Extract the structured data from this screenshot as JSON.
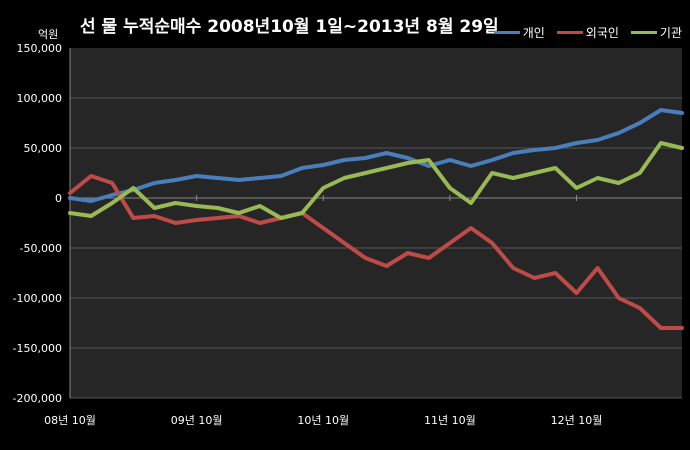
{
  "chart_data": {
    "type": "line",
    "title": "선 물 누적순매수 2008년10월 1일~2013년 8월 29일",
    "ylabel": "억원",
    "ylim": [
      -200000,
      150000
    ],
    "yticks": [
      "150,000",
      "100,000",
      "50,000",
      "0",
      "-50,000",
      "-100,000",
      "-150,000",
      "-200,000"
    ],
    "ytick_values": [
      150000,
      100000,
      50000,
      0,
      -50000,
      -100000,
      -150000,
      -200000
    ],
    "xtick_labels": [
      "08년 10월",
      "09년 10월",
      "10년 10월",
      "11년 10월",
      "12년 10월"
    ],
    "xlim": [
      "2008-10",
      "2013-08"
    ],
    "x": [
      "2008-10",
      "2008-12",
      "2009-02",
      "2009-04",
      "2009-06",
      "2009-08",
      "2009-10",
      "2009-12",
      "2010-02",
      "2010-04",
      "2010-06",
      "2010-08",
      "2010-10",
      "2010-12",
      "2011-02",
      "2011-04",
      "2011-06",
      "2011-08",
      "2011-10",
      "2011-12",
      "2012-02",
      "2012-04",
      "2012-06",
      "2012-08",
      "2012-10",
      "2012-12",
      "2013-02",
      "2013-04",
      "2013-06",
      "2013-08"
    ],
    "grid": true,
    "legend_position": "top-right",
    "series": [
      {
        "name": "개인",
        "color": "#4a7ebb",
        "values": [
          0,
          -3000,
          3000,
          8000,
          15000,
          18000,
          22000,
          20000,
          18000,
          20000,
          22000,
          30000,
          33000,
          38000,
          40000,
          45000,
          40000,
          32000,
          38000,
          32000,
          38000,
          45000,
          48000,
          50000,
          55000,
          58000,
          65000,
          75000,
          88000,
          85000
        ]
      },
      {
        "name": "외국인",
        "color": "#be4b48",
        "values": [
          5000,
          22000,
          15000,
          -20000,
          -18000,
          -25000,
          -22000,
          -20000,
          -18000,
          -25000,
          -20000,
          -15000,
          -30000,
          -45000,
          -60000,
          -68000,
          -55000,
          -60000,
          -45000,
          -30000,
          -45000,
          -70000,
          -80000,
          -75000,
          -95000,
          -70000,
          -100000,
          -110000,
          -130000,
          -130000
        ]
      },
      {
        "name": "기관",
        "color": "#98b954",
        "values": [
          -15000,
          -18000,
          -5000,
          10000,
          -10000,
          -5000,
          -8000,
          -10000,
          -15000,
          -8000,
          -20000,
          -15000,
          10000,
          20000,
          25000,
          30000,
          35000,
          38000,
          10000,
          -5000,
          25000,
          20000,
          25000,
          30000,
          10000,
          20000,
          15000,
          25000,
          55000,
          50000
        ]
      }
    ]
  }
}
